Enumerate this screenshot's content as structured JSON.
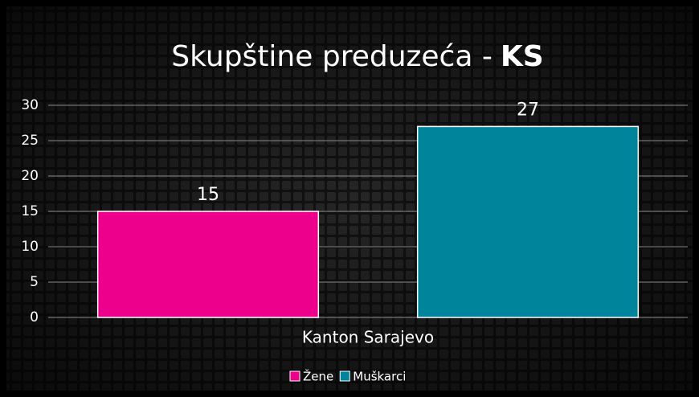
{
  "chart_data": {
    "type": "bar",
    "title": "Skupštine preduzeća -",
    "title_emphasis": "KS",
    "categories": [
      "Kanton Sarajevo"
    ],
    "series": [
      {
        "name": "Žene",
        "color": "#ec008c",
        "values": [
          15
        ]
      },
      {
        "name": "Muškarci",
        "color": "#00849c",
        "values": [
          27
        ]
      }
    ],
    "ylim": [
      0,
      30
    ],
    "yticks": [
      0,
      5,
      10,
      15,
      20,
      25,
      30
    ],
    "grid": true,
    "legend": "bottom"
  }
}
